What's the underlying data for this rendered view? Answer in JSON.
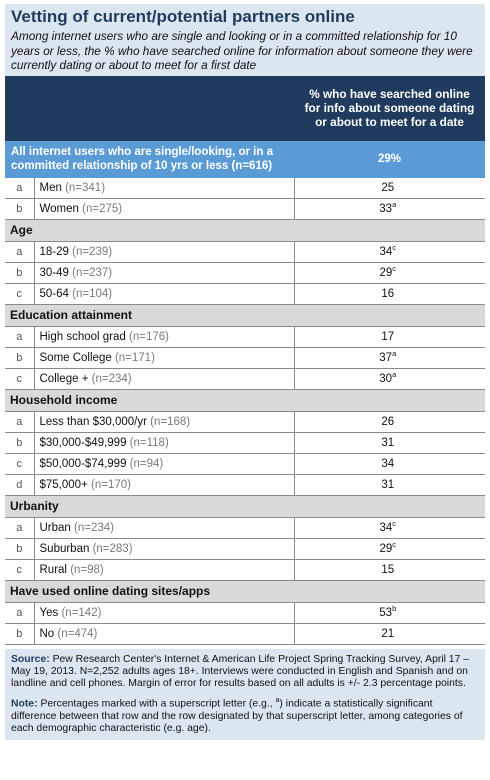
{
  "title": "Vetting of current/potential partners online",
  "subtitle": "Among internet users who are single and looking or in a committed relationship for 10 years or less, the % who have searched online for information about someone they were currently dating or about to meet for a first date",
  "column_header": "% who have searched online for info about someone dating or about to meet for a date",
  "all_row": {
    "label": "All internet users who are single/looking, or in a committed relationship of 10 yrs or less (n=616)",
    "value": "29%"
  },
  "groups": [
    {
      "section": "",
      "rows": [
        {
          "letter": "a",
          "label": "Men",
          "n": "(n=341)",
          "value": "25",
          "sup": ""
        },
        {
          "letter": "b",
          "label": "Women",
          "n": "(n=275)",
          "value": "33",
          "sup": "a"
        }
      ]
    },
    {
      "section": "Age",
      "rows": [
        {
          "letter": "a",
          "label": "18-29",
          "n": "(n=239)",
          "value": "34",
          "sup": "c"
        },
        {
          "letter": "b",
          "label": "30-49",
          "n": "(n=237)",
          "value": "29",
          "sup": "c"
        },
        {
          "letter": "c",
          "label": "50-64",
          "n": "(n=104)",
          "value": "16",
          "sup": ""
        }
      ]
    },
    {
      "section": "Education attainment",
      "rows": [
        {
          "letter": "a",
          "label": "High school grad",
          "n": "(n=176)",
          "value": "17",
          "sup": ""
        },
        {
          "letter": "b",
          "label": "Some College",
          "n": "(n=171)",
          "value": "37",
          "sup": "a"
        },
        {
          "letter": "c",
          "label": "College +",
          "n": "(n=234)",
          "value": "30",
          "sup": "a"
        }
      ]
    },
    {
      "section": "Household income",
      "rows": [
        {
          "letter": "a",
          "label": "Less than $30,000/yr",
          "n": "(n=168)",
          "value": "26",
          "sup": ""
        },
        {
          "letter": "b",
          "label": "$30,000-$49,999",
          "n": "(n=118)",
          "value": "31",
          "sup": ""
        },
        {
          "letter": "c",
          "label": "$50,000-$74,999",
          "n": "(n=94)",
          "value": "34",
          "sup": ""
        },
        {
          "letter": "d",
          "label": "$75,000+",
          "n": "(n=170)",
          "value": "31",
          "sup": ""
        }
      ]
    },
    {
      "section": "Urbanity",
      "rows": [
        {
          "letter": "a",
          "label": "Urban",
          "n": "(n=234)",
          "value": "34",
          "sup": "c"
        },
        {
          "letter": "b",
          "label": "Suburban",
          "n": "(n=283)",
          "value": "29",
          "sup": "c"
        },
        {
          "letter": "c",
          "label": "Rural",
          "n": "(n=98)",
          "value": "15",
          "sup": ""
        }
      ]
    },
    {
      "section": "Have used online dating sites/apps",
      "rows": [
        {
          "letter": "a",
          "label": "Yes",
          "n": "(n=142)",
          "value": "53",
          "sup": "b"
        },
        {
          "letter": "b",
          "label": "No",
          "n": "(n=474)",
          "value": "21",
          "sup": ""
        }
      ]
    }
  ],
  "footer": {
    "source_label": "Source:",
    "source_text": "Pew Research Center's Internet & American Life Project Spring Tracking Survey, April 17 – May 19, 2013. N=2,252 adults ages 18+. Interviews were conducted in English and Spanish and on landline and cell phones.  Margin of error for results based on all adults is +/- 2.3 percentage points.",
    "note_label": "Note:",
    "note_text_1": "Percentages marked with a superscript letter (e.g., ",
    "note_sup": "a",
    "note_text_2": ") indicate a statistically significant difference between that row and the row designated by that superscript letter, among categories of each demographic characteristic (e.g. age)."
  },
  "colors": {
    "navy": "#1f3c5e",
    "accent_blue": "#5b9bd5",
    "section_gray": "#d9d9d9",
    "panel_light_blue": "#dce6f1"
  }
}
